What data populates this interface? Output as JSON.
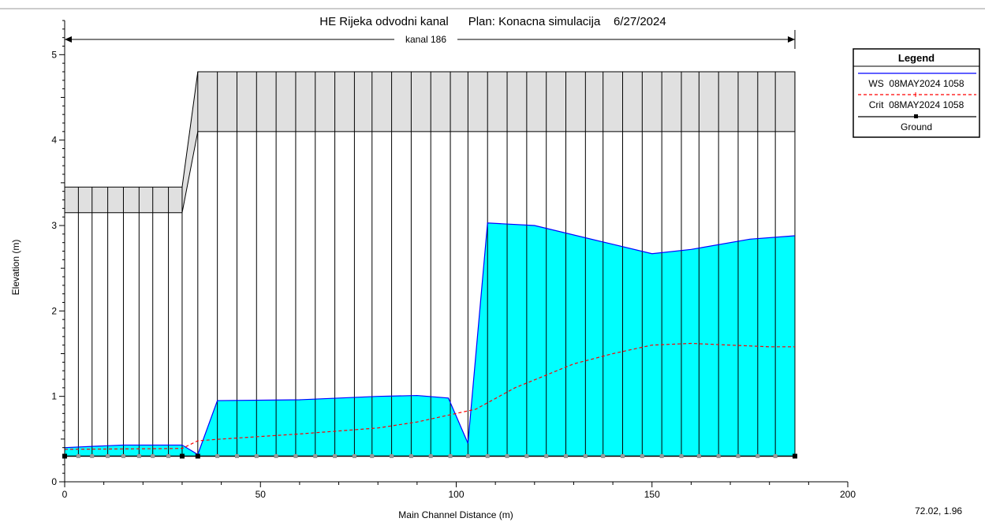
{
  "window": {
    "title": "HE Rijeka odvodni kanal      Plan: Konacna simulacija    6/27/2024",
    "cursor_readout": "72.02, 1.96"
  },
  "chart_data": {
    "type": "area",
    "title": "HE Rijeka odvodni kanal      Plan: Konacna simulacija    6/27/2024",
    "xlabel": "Main Channel Distance (m)",
    "ylabel": "Elevation (m)",
    "xlim": [
      0,
      200
    ],
    "ylim": [
      0,
      5.4
    ],
    "xticks": [
      "0",
      "50",
      "100",
      "150",
      "200"
    ],
    "yticks": [
      "0",
      "1",
      "2",
      "3",
      "4",
      "5"
    ],
    "grid": false,
    "legend_position": "top-right",
    "reach_label": "kanal 186",
    "reach_extent": [
      0,
      186.5
    ],
    "colors": {
      "water_fill": "#00ffff",
      "ws_line": "#0000ff",
      "crit_line": "#ff0000",
      "ground_line": "#000000",
      "structure_fill": "#e0e0e0",
      "section_line": "#000000"
    },
    "legend": {
      "title": "Legend",
      "entries": [
        "WS  08MAY2024 1058",
        "Crit  08MAY2024 1058",
        "Ground"
      ]
    },
    "ground": {
      "x": [
        0,
        186.5
      ],
      "y": [
        0.3,
        0.3
      ]
    },
    "water_surface": {
      "name": "WS  08MAY2024 1058",
      "x": [
        0,
        15,
        30,
        34,
        39,
        60,
        80,
        90,
        98,
        103,
        108,
        120,
        140,
        150,
        160,
        175,
        186.5
      ],
      "y": [
        0.4,
        0.43,
        0.43,
        0.32,
        0.95,
        0.96,
        1.0,
        1.01,
        0.98,
        0.45,
        3.03,
        3.0,
        2.78,
        2.67,
        2.72,
        2.84,
        2.88
      ]
    },
    "critical_depth": {
      "name": "Crit  08MAY2024 1058",
      "x": [
        0,
        30,
        34,
        40,
        60,
        80,
        90,
        100,
        105,
        115,
        130,
        140,
        150,
        160,
        170,
        180,
        186.5
      ],
      "y": [
        0.38,
        0.39,
        0.48,
        0.5,
        0.56,
        0.63,
        0.7,
        0.8,
        0.85,
        1.1,
        1.38,
        1.5,
        1.6,
        1.62,
        1.6,
        1.58,
        1.58
      ]
    },
    "culvert": [
      {
        "x_start": 0,
        "x_end": 30,
        "bottom": 3.15,
        "top": 3.45
      },
      {
        "x_start": 34,
        "x_end": 186.5,
        "bottom": 4.1,
        "top": 4.8
      }
    ],
    "cross_sections_x": [
      0,
      3.5,
      7,
      11,
      15,
      19,
      22.5,
      26.5,
      30,
      34,
      39,
      44,
      49,
      54,
      59,
      64,
      69,
      74,
      78.5,
      83.5,
      88.5,
      93.5,
      98.5,
      103,
      108,
      113,
      118,
      123,
      128,
      133,
      137.5,
      142.5,
      147.5,
      152.5,
      157.5,
      162,
      167,
      172,
      177,
      181.5,
      186.5
    ]
  }
}
